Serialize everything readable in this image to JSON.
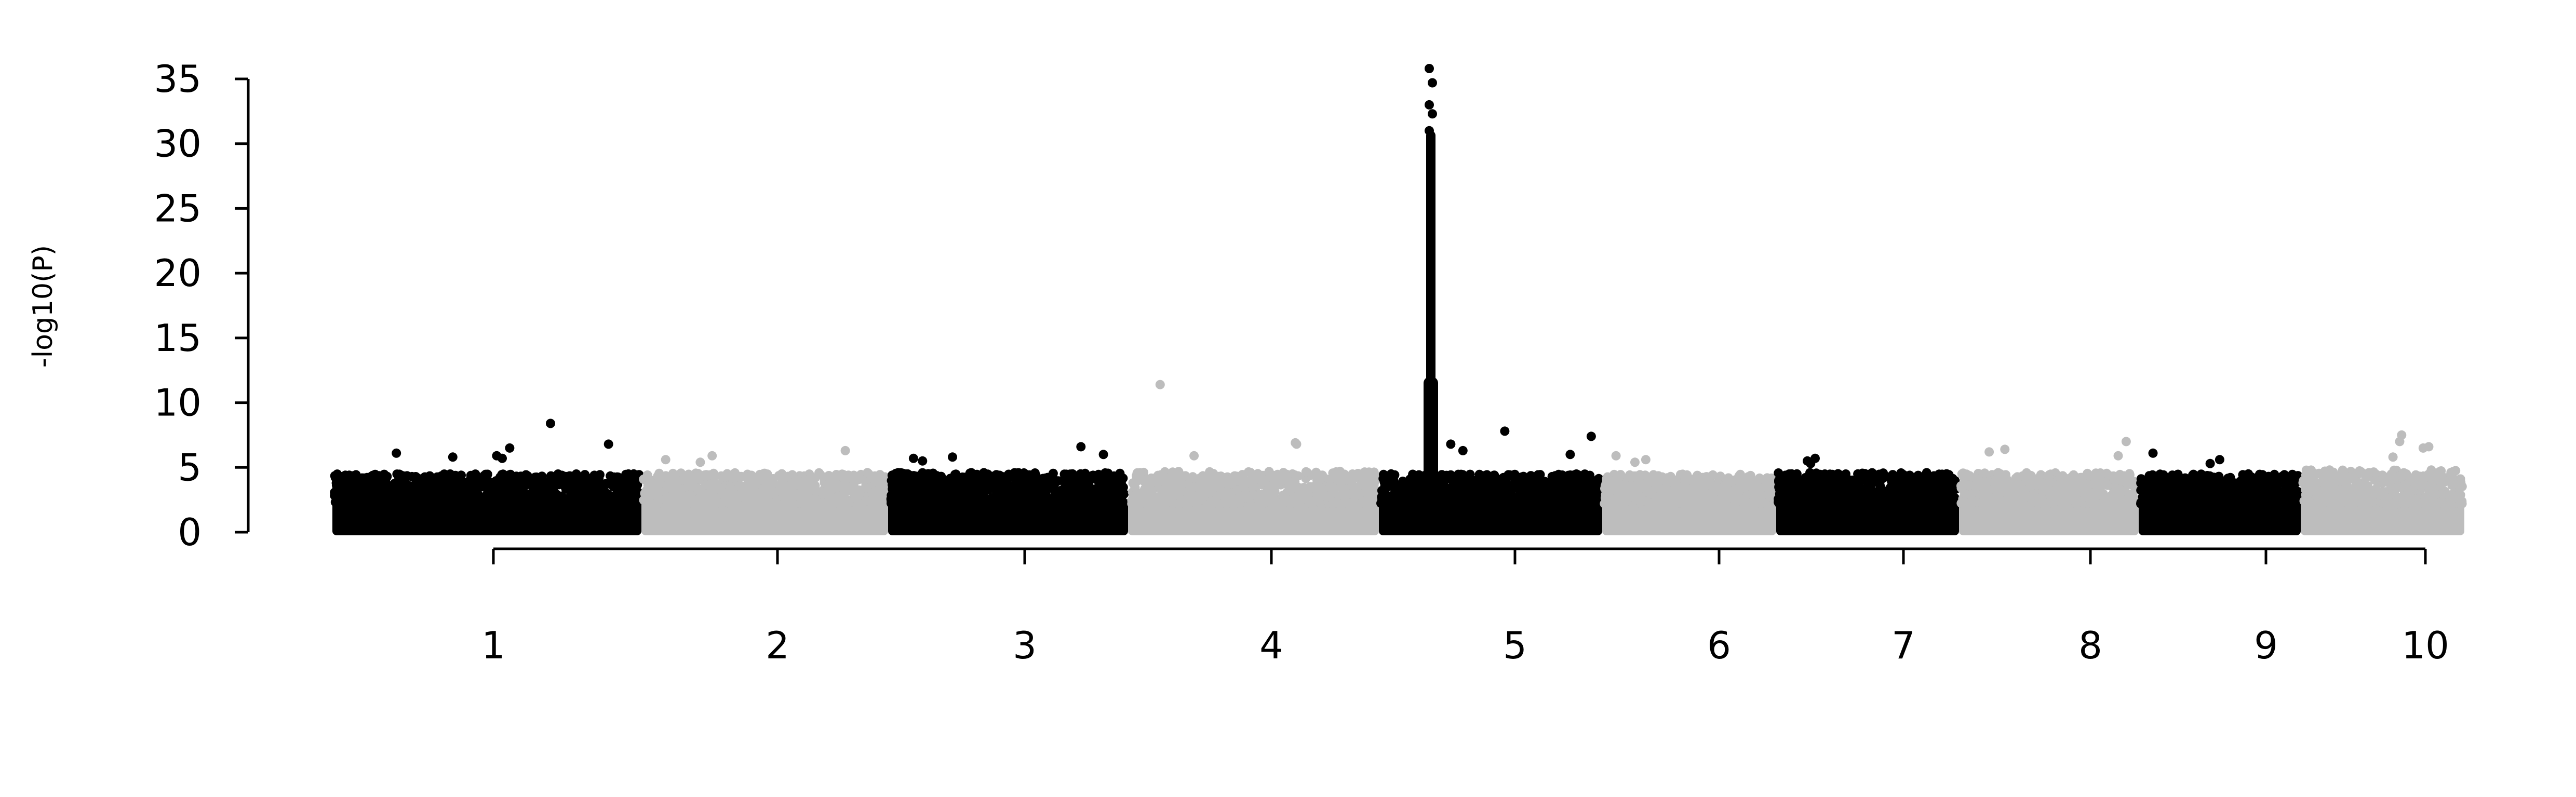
{
  "chart_data": {
    "type": "scatter",
    "title": "",
    "xlabel": "",
    "ylabel": "-log10(P)",
    "ylim": [
      0,
      35
    ],
    "y_ticks": [
      0,
      5,
      10,
      15,
      20,
      25,
      30,
      35
    ],
    "categories": [
      "1",
      "2",
      "3",
      "4",
      "5",
      "6",
      "7",
      "8",
      "9",
      "10"
    ],
    "colors": {
      "odd": "#000000",
      "even": "#bdbdbd"
    },
    "chromosomes": [
      {
        "label": "1",
        "color": "#000000",
        "max_background": 4.5,
        "peaks": [
          8.4,
          6.8,
          6.5,
          6.1,
          5.9,
          5.8,
          5.7
        ]
      },
      {
        "label": "2",
        "color": "#bdbdbd",
        "max_background": 4.6,
        "peaks": [
          6.3,
          5.9,
          5.6,
          5.4
        ]
      },
      {
        "label": "3",
        "color": "#000000",
        "max_background": 4.6,
        "peaks": [
          6.6,
          6.0,
          5.8,
          5.7,
          5.5
        ]
      },
      {
        "label": "4",
        "color": "#bdbdbd",
        "max_background": 4.7,
        "peaks": [
          11.4,
          6.9,
          6.8,
          5.9
        ]
      },
      {
        "label": "5",
        "color": "#000000",
        "max_background": 4.5,
        "peaks": [
          35.8,
          34.7,
          33.0,
          32.3,
          31.0,
          7.8,
          7.4,
          6.8,
          6.3,
          6.0
        ]
      },
      {
        "label": "6",
        "color": "#bdbdbd",
        "max_background": 4.5,
        "peaks": [
          5.9,
          5.6,
          5.4
        ]
      },
      {
        "label": "7",
        "color": "#000000",
        "max_background": 4.6,
        "peaks": [
          5.7,
          5.5,
          5.3
        ]
      },
      {
        "label": "8",
        "color": "#bdbdbd",
        "max_background": 4.6,
        "peaks": [
          7.0,
          6.4,
          6.2,
          5.9
        ]
      },
      {
        "label": "9",
        "color": "#000000",
        "max_background": 4.5,
        "peaks": [
          6.1,
          5.6,
          5.3
        ]
      },
      {
        "label": "10",
        "color": "#bdbdbd",
        "max_background": 4.8,
        "peaks": [
          7.5,
          7.0,
          6.6,
          6.5,
          5.8
        ]
      }
    ]
  }
}
